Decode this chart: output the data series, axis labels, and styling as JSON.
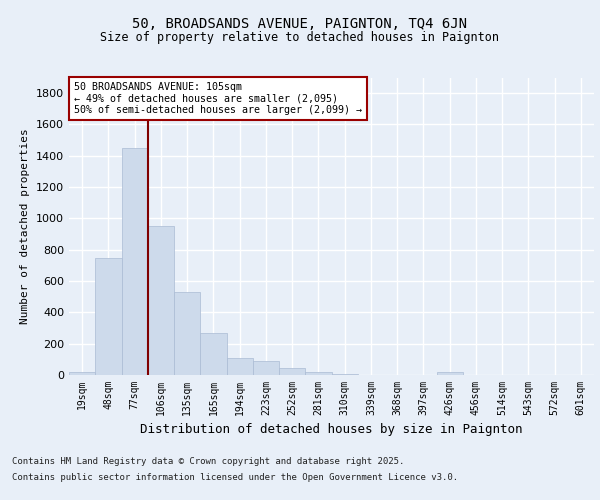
{
  "title1": "50, BROADSANDS AVENUE, PAIGNTON, TQ4 6JN",
  "title2": "Size of property relative to detached houses in Paignton",
  "xlabel": "Distribution of detached houses by size in Paignton",
  "ylabel": "Number of detached properties",
  "categories": [
    "19sqm",
    "48sqm",
    "77sqm",
    "106sqm",
    "135sqm",
    "165sqm",
    "194sqm",
    "223sqm",
    "252sqm",
    "281sqm",
    "310sqm",
    "339sqm",
    "368sqm",
    "397sqm",
    "426sqm",
    "456sqm",
    "514sqm",
    "543sqm",
    "572sqm",
    "601sqm"
  ],
  "values": [
    20,
    750,
    1450,
    950,
    530,
    270,
    110,
    90,
    45,
    18,
    5,
    3,
    2,
    1,
    18,
    1,
    1,
    0,
    0,
    0
  ],
  "bar_color": "#cddaeb",
  "bar_edge_color": "#aabbd4",
  "bar_width": 1.0,
  "vline_x": 2.5,
  "vline_color": "#800000",
  "annotation_box_color": "#ffffff",
  "annotation_border_color": "#990000",
  "annotation_text_line1": "50 BROADSANDS AVENUE: 105sqm",
  "annotation_text_line2": "← 49% of detached houses are smaller (2,095)",
  "annotation_text_line3": "50% of semi-detached houses are larger (2,099) →",
  "ylim": [
    0,
    1900
  ],
  "yticks": [
    0,
    200,
    400,
    600,
    800,
    1000,
    1200,
    1400,
    1600,
    1800
  ],
  "bg_color": "#e8eff8",
  "grid_color": "#ffffff",
  "footer1": "Contains HM Land Registry data © Crown copyright and database right 2025.",
  "footer2": "Contains public sector information licensed under the Open Government Licence v3.0."
}
